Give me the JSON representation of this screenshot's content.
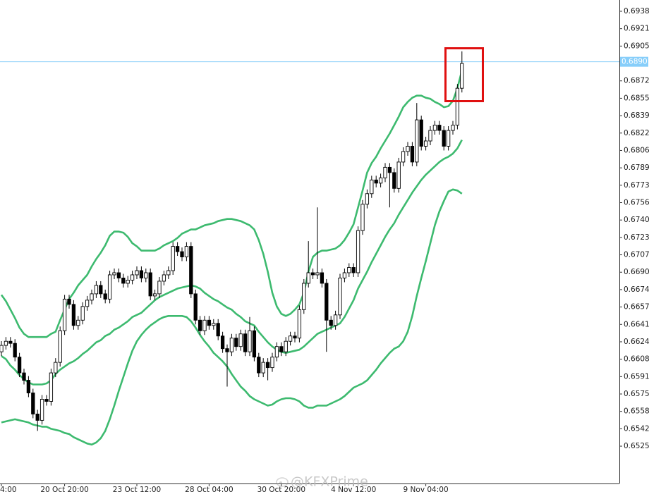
{
  "chart_data": {
    "type": "candlestick",
    "watermark": "@KFXPrime",
    "categories": [
      "4:00",
      null,
      null,
      null,
      null,
      null,
      null,
      null,
      null,
      null,
      null,
      null,
      null,
      null,
      "20 Oct 20:00",
      null,
      null,
      null,
      null,
      null,
      null,
      null,
      null,
      null,
      null,
      null,
      null,
      null,
      null,
      null,
      "23 Oct 12:00",
      null,
      null,
      null,
      null,
      null,
      null,
      null,
      null,
      null,
      null,
      null,
      null,
      null,
      null,
      null,
      "28 Oct 04:00",
      null,
      null,
      null,
      null,
      null,
      null,
      null,
      null,
      null,
      null,
      null,
      null,
      null,
      null,
      null,
      "30 Oct 20:00",
      null,
      null,
      null,
      null,
      null,
      null,
      null,
      null,
      null,
      null,
      null,
      null,
      null,
      null,
      null,
      "4 Nov 12:00",
      null,
      null,
      null,
      null,
      null,
      null,
      null,
      null,
      null,
      null,
      null,
      null,
      null,
      null,
      null,
      "9 Nov 04:00",
      null,
      null,
      null,
      null,
      null,
      null,
      null,
      null
    ],
    "open": [
      0.6615,
      0.66211,
      0.6625,
      0.6623,
      0.661,
      0.6595,
      0.6588,
      0.6576,
      0.6556,
      0.655,
      0.657,
      0.6568,
      0.6595,
      0.6605,
      0.6635,
      0.6665,
      0.666,
      0.664,
      0.6645,
      0.6658,
      0.6664,
      0.667,
      0.6678,
      0.667,
      0.6665,
      0.6688,
      0.669,
      0.6685,
      0.668,
      0.6683,
      0.6688,
      0.6692,
      0.6685,
      0.669,
      0.6668,
      0.667,
      0.6682,
      0.6688,
      0.6692,
      0.6715,
      0.671,
      0.6705,
      0.6715,
      0.667,
      0.6645,
      0.6635,
      0.6645,
      0.664,
      0.6642,
      0.663,
      0.6618,
      0.6615,
      0.6628,
      0.662,
      0.6632,
      0.6615,
      0.6635,
      0.661,
      0.6595,
      0.6605,
      0.66,
      0.661,
      0.662,
      0.6615,
      0.6625,
      0.663,
      0.6628,
      0.6655,
      0.668,
      0.669,
      0.6688,
      0.669,
      0.668,
      0.6645,
      0.664,
      0.665,
      0.6685,
      0.669,
      0.6695,
      0.669,
      0.673,
      0.6755,
      0.6765,
      0.6778,
      0.6775,
      0.678,
      0.679,
      0.6785,
      0.677,
      0.6795,
      0.6805,
      0.681,
      0.6795,
      0.6835,
      0.681,
      0.6815,
      0.6825,
      0.683,
      0.6825,
      0.681,
      0.6825,
      0.683,
      0.6865
    ],
    "high": [
      0.66251,
      0.6629,
      0.6629,
      0.6627,
      0.6614,
      0.6599,
      0.6592,
      0.658,
      0.656,
      0.6574,
      0.6574,
      0.6599,
      0.6609,
      0.6639,
      0.6669,
      0.6669,
      0.6664,
      0.6649,
      0.6662,
      0.6668,
      0.6674,
      0.6682,
      0.6682,
      0.6674,
      0.6692,
      0.6694,
      0.6694,
      0.6689,
      0.6687,
      0.6692,
      0.6696,
      0.6696,
      0.6694,
      0.6694,
      0.6674,
      0.6686,
      0.6692,
      0.6696,
      0.6719,
      0.6719,
      0.6714,
      0.6719,
      0.6719,
      0.6674,
      0.6649,
      0.6649,
      0.6649,
      0.6646,
      0.6646,
      0.6634,
      0.6622,
      0.6632,
      0.6632,
      0.6636,
      0.6636,
      0.6648,
      0.6639,
      0.6614,
      0.6609,
      0.6609,
      0.6614,
      0.6624,
      0.6624,
      0.6629,
      0.6634,
      0.6634,
      0.6659,
      0.6684,
      0.672,
      0.6694,
      0.6752,
      0.6694,
      0.6684,
      0.6649,
      0.6654,
      0.6689,
      0.6694,
      0.6699,
      0.6699,
      0.6734,
      0.6759,
      0.6769,
      0.6782,
      0.6782,
      0.6784,
      0.6794,
      0.6794,
      0.6789,
      0.6799,
      0.6809,
      0.6814,
      0.6814,
      0.6851,
      0.6839,
      0.6819,
      0.6829,
      0.6834,
      0.6834,
      0.6829,
      0.6829,
      0.6834,
      0.6869,
      0.69
    ],
    "low": [
      0.6611,
      0.66171,
      0.6619,
      0.6606,
      0.6591,
      0.6584,
      0.6572,
      0.6552,
      0.654,
      0.6546,
      0.6564,
      0.6564,
      0.6591,
      0.6601,
      0.6631,
      0.6656,
      0.6636,
      0.6636,
      0.6641,
      0.6654,
      0.666,
      0.6666,
      0.6666,
      0.6661,
      0.6661,
      0.6684,
      0.6681,
      0.6676,
      0.6676,
      0.6679,
      0.6684,
      0.6681,
      0.6681,
      0.6664,
      0.6664,
      0.6666,
      0.6678,
      0.6684,
      0.6688,
      0.6706,
      0.6701,
      0.6701,
      0.6666,
      0.6641,
      0.6631,
      0.6631,
      0.6636,
      0.6636,
      0.6626,
      0.6614,
      0.6582,
      0.6611,
      0.6616,
      0.6616,
      0.6611,
      0.6611,
      0.6606,
      0.6591,
      0.6591,
      0.6588,
      0.6596,
      0.6606,
      0.6611,
      0.6611,
      0.6621,
      0.6624,
      0.6624,
      0.6651,
      0.6676,
      0.6684,
      0.6684,
      0.6676,
      0.6615,
      0.6636,
      0.6636,
      0.6646,
      0.6681,
      0.6686,
      0.6686,
      0.6686,
      0.6726,
      0.6751,
      0.6761,
      0.6771,
      0.6771,
      0.6776,
      0.6752,
      0.6766,
      0.6766,
      0.6791,
      0.6801,
      0.6791,
      0.6791,
      0.6806,
      0.6806,
      0.6811,
      0.6821,
      0.6821,
      0.6806,
      0.6806,
      0.6821,
      0.6826,
      0.6861
    ],
    "close": [
      0.66211,
      0.6625,
      0.6623,
      0.661,
      0.6595,
      0.6588,
      0.6576,
      0.6556,
      0.655,
      0.657,
      0.6568,
      0.6595,
      0.6605,
      0.6635,
      0.6665,
      0.666,
      0.664,
      0.6645,
      0.6658,
      0.6664,
      0.667,
      0.6678,
      0.667,
      0.6665,
      0.6688,
      0.669,
      0.6685,
      0.668,
      0.6683,
      0.6688,
      0.6692,
      0.6685,
      0.669,
      0.6668,
      0.667,
      0.6682,
      0.6688,
      0.6692,
      0.6715,
      0.671,
      0.6705,
      0.6715,
      0.667,
      0.6645,
      0.6635,
      0.6645,
      0.664,
      0.6642,
      0.663,
      0.6618,
      0.6615,
      0.6628,
      0.662,
      0.6632,
      0.6615,
      0.6635,
      0.661,
      0.6595,
      0.6605,
      0.66,
      0.661,
      0.662,
      0.6615,
      0.6625,
      0.663,
      0.6628,
      0.6655,
      0.668,
      0.669,
      0.6688,
      0.669,
      0.668,
      0.6645,
      0.664,
      0.665,
      0.6685,
      0.669,
      0.6695,
      0.669,
      0.673,
      0.6755,
      0.6765,
      0.6778,
      0.6775,
      0.678,
      0.679,
      0.6785,
      0.677,
      0.6795,
      0.6805,
      0.681,
      0.6795,
      0.6835,
      0.681,
      0.6815,
      0.6825,
      0.683,
      0.6825,
      0.681,
      0.6825,
      0.683,
      0.6865,
      0.68885
    ],
    "bands": [
      {
        "color": "#3dba6f",
        "values": [
          0.6669,
          0.6663,
          0.6655,
          0.6647,
          0.6638,
          0.6632,
          0.6629,
          0.6629,
          0.6629,
          0.6629,
          0.6629,
          0.6632,
          0.6634,
          0.6645,
          0.6655,
          0.6665,
          0.6671,
          0.6678,
          0.6683,
          0.6688,
          0.6696,
          0.6703,
          0.6709,
          0.6716,
          0.6725,
          0.6729,
          0.6729,
          0.6728,
          0.6724,
          0.6718,
          0.6715,
          0.6711,
          0.6711,
          0.6711,
          0.6711,
          0.6713,
          0.6716,
          0.6718,
          0.672,
          0.6723,
          0.6727,
          0.6729,
          0.6731,
          0.6731,
          0.6733,
          0.6735,
          0.6736,
          0.6737,
          0.6739,
          0.674,
          0.6741,
          0.6741,
          0.674,
          0.6739,
          0.6737,
          0.6735,
          0.6731,
          0.6721,
          0.6708,
          0.6691,
          0.6671,
          0.6658,
          0.6651,
          0.6649,
          0.6651,
          0.6655,
          0.666,
          0.6671,
          0.6691,
          0.6705,
          0.6709,
          0.6711,
          0.6711,
          0.6712,
          0.6713,
          0.6716,
          0.6721,
          0.6728,
          0.6736,
          0.6752,
          0.6768,
          0.6785,
          0.6794,
          0.68,
          0.6808,
          0.6815,
          0.6822,
          0.683,
          0.6838,
          0.6847,
          0.6852,
          0.6856,
          0.6858,
          0.6858,
          0.6856,
          0.6855,
          0.6852,
          0.685,
          0.6847,
          0.6848,
          0.6853,
          0.6865,
          0.6882
        ]
      },
      {
        "color": "#3dba6f",
        "values": [
          0.6611,
          0.6608,
          0.6602,
          0.6598,
          0.6593,
          0.6589,
          0.6586,
          0.6584,
          0.6584,
          0.6584,
          0.6585,
          0.6588,
          0.6594,
          0.6598,
          0.6601,
          0.6604,
          0.6606,
          0.6609,
          0.6613,
          0.6616,
          0.662,
          0.6624,
          0.6626,
          0.663,
          0.6632,
          0.6636,
          0.6638,
          0.6641,
          0.6644,
          0.6648,
          0.665,
          0.6652,
          0.6656,
          0.666,
          0.6664,
          0.6667,
          0.6669,
          0.6671,
          0.6673,
          0.6675,
          0.6676,
          0.6677,
          0.6678,
          0.6677,
          0.6675,
          0.6671,
          0.6668,
          0.6665,
          0.6663,
          0.666,
          0.6657,
          0.6655,
          0.6651,
          0.6648,
          0.6644,
          0.6642,
          0.664,
          0.6634,
          0.6629,
          0.6624,
          0.662,
          0.6617,
          0.6615,
          0.6614,
          0.6615,
          0.6616,
          0.6617,
          0.662,
          0.6624,
          0.6628,
          0.6632,
          0.6634,
          0.6636,
          0.6638,
          0.664,
          0.6642,
          0.6648,
          0.6656,
          0.6664,
          0.6675,
          0.6683,
          0.6691,
          0.67,
          0.6708,
          0.6716,
          0.6724,
          0.6731,
          0.6737,
          0.6745,
          0.6752,
          0.6759,
          0.6766,
          0.6772,
          0.6778,
          0.6783,
          0.6787,
          0.6791,
          0.6795,
          0.6798,
          0.68,
          0.6803,
          0.6808,
          0.6816
        ]
      },
      {
        "color": "#3dba6f",
        "values": [
          0.6548,
          0.6549,
          0.655,
          0.6551,
          0.655,
          0.6549,
          0.6548,
          0.6546,
          0.6545,
          0.6544,
          0.6544,
          0.6542,
          0.6541,
          0.654,
          0.6538,
          0.6537,
          0.6534,
          0.6532,
          0.653,
          0.6528,
          0.6527,
          0.6529,
          0.6533,
          0.654,
          0.6551,
          0.6564,
          0.6578,
          0.6591,
          0.6604,
          0.6616,
          0.6625,
          0.6631,
          0.6636,
          0.664,
          0.6643,
          0.6646,
          0.6648,
          0.6649,
          0.6649,
          0.6649,
          0.6649,
          0.6648,
          0.6644,
          0.6638,
          0.6631,
          0.6625,
          0.662,
          0.6614,
          0.661,
          0.6606,
          0.6601,
          0.6594,
          0.6588,
          0.6582,
          0.6578,
          0.6573,
          0.657,
          0.6568,
          0.6566,
          0.6564,
          0.6565,
          0.6568,
          0.657,
          0.6571,
          0.6571,
          0.657,
          0.6568,
          0.6564,
          0.6562,
          0.6562,
          0.6564,
          0.6564,
          0.6564,
          0.6566,
          0.6568,
          0.657,
          0.6573,
          0.6577,
          0.6581,
          0.6583,
          0.6585,
          0.6588,
          0.6593,
          0.6598,
          0.6604,
          0.6609,
          0.6614,
          0.6618,
          0.662,
          0.6625,
          0.6634,
          0.6649,
          0.6668,
          0.6685,
          0.6701,
          0.6718,
          0.6735,
          0.6748,
          0.6758,
          0.6767,
          0.6769,
          0.6768,
          0.6765
        ]
      }
    ],
    "current_price": 0.68901,
    "current_price_color": "#87cefa",
    "ylim": [
      0.64901,
      0.69487
    ],
    "yticks": [
      {
        "value": 0.6938,
        "label": "0.69380"
      },
      0.69215,
      {
        "value": 0.6905,
        "label": "0.69050"
      },
      {
        "value": 0.6872,
        "label": "0.68720"
      },
      0.68555,
      {
        "value": 0.6839,
        "label": "0.68390"
      },
      0.68225,
      {
        "value": 0.6806,
        "label": "0.68060"
      },
      0.67895,
      {
        "value": 0.6773,
        "label": "0.67730"
      },
      0.67565,
      {
        "value": 0.674,
        "label": "0.67400"
      },
      0.67235,
      {
        "value": 0.6707,
        "label": "0.67070"
      },
      0.66905,
      {
        "value": 0.6674,
        "label": "0.66740"
      },
      0.66575,
      {
        "value": 0.6641,
        "label": "0.66410"
      },
      0.66245,
      {
        "value": 0.6608,
        "label": "0.66080"
      },
      0.65915,
      {
        "value": 0.6575,
        "label": "0.65750"
      },
      0.65585,
      {
        "value": 0.6542,
        "label": "0.65420"
      },
      0.65255
    ],
    "grid": false
  }
}
